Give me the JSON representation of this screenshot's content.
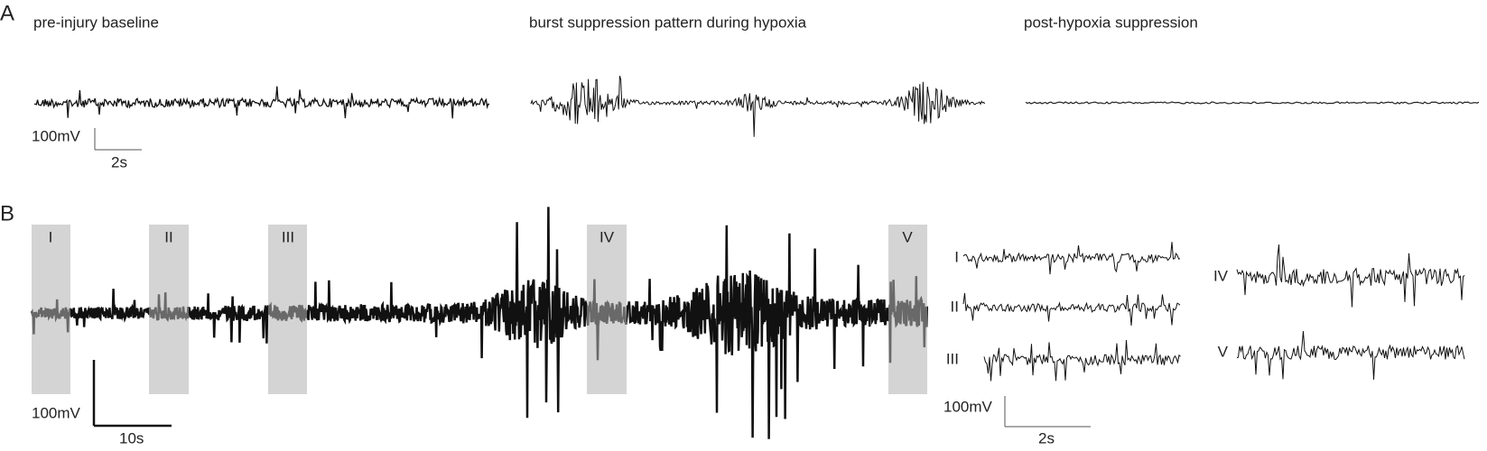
{
  "panel_a": {
    "label": "A",
    "traces": [
      {
        "title": "pre-injury baseline"
      },
      {
        "title": "burst suppression pattern during hypoxia"
      },
      {
        "title": "post-hypoxia suppression"
      }
    ],
    "scale_bar": {
      "amplitude": "100mV",
      "time": "2s"
    }
  },
  "panel_b": {
    "label": "B",
    "epochs": [
      "I",
      "II",
      "III",
      "IV",
      "V"
    ],
    "scale_bar": {
      "amplitude": "100mV",
      "time": "10s"
    },
    "inset_scale_bar": {
      "amplitude": "100mV",
      "time": "2s"
    }
  }
}
